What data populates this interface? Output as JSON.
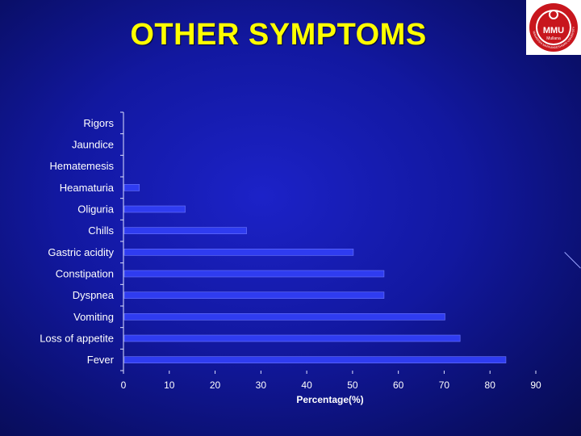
{
  "slide": {
    "title": "OTHER SYMPTOMS"
  },
  "logo": {
    "text": "MMU",
    "subtext": "Mullana",
    "ring_text": "MAHARISHI MARKANDESHWAR UNIVERSITY",
    "color": "#c8161d"
  },
  "colors": {
    "background": "#1218a0",
    "title": "#ffff00",
    "bar": "#2f3cf0",
    "bar_edge": "#6e78ff",
    "axis": "#dfe2ff"
  },
  "chart_data": {
    "type": "bar",
    "orientation": "horizontal",
    "title": "",
    "xlabel": "Percentage(%)",
    "ylabel": "",
    "xlim": [
      0,
      90
    ],
    "x_ticks": [
      0,
      10,
      20,
      30,
      40,
      50,
      60,
      70,
      80,
      90
    ],
    "grid": false,
    "legend": "none",
    "categories": [
      "Rigors",
      "Jaundice",
      "Hematemesis",
      "Heamaturia",
      "Oliguria",
      "Chills",
      "Gastric acidity",
      "Constipation",
      "Dyspnea",
      "Vomiting",
      "Loss of appetite",
      "Fever"
    ],
    "values": [
      0,
      0,
      0,
      3.3,
      13.3,
      26.7,
      50,
      56.7,
      56.7,
      70,
      73.3,
      83.3
    ]
  }
}
